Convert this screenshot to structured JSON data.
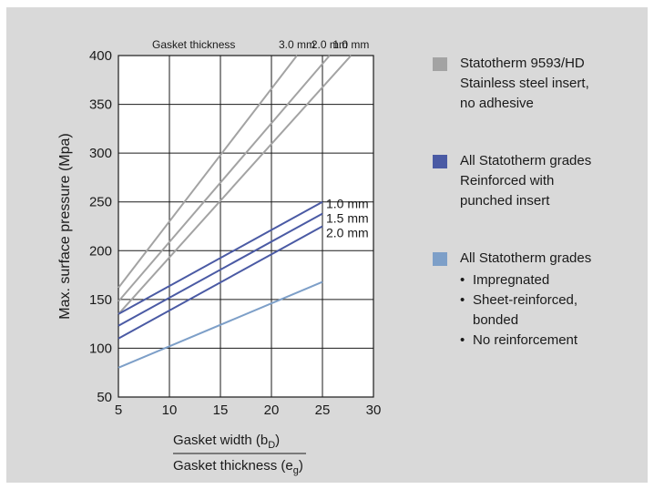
{
  "chart_data": {
    "type": "line",
    "title": "",
    "ylabel": "Max. surface pressure (Mpa)",
    "xlabel_numerator": "Gasket width (b",
    "xlabel_numerator_sub": "D",
    "xlabel_denominator": "Gasket thickness (e",
    "xlabel_denominator_sub": "g",
    "xlim": [
      5,
      30
    ],
    "ylim": [
      50,
      400
    ],
    "x_ticks": [
      "5",
      "10",
      "15",
      "20",
      "25",
      "30"
    ],
    "y_ticks": [
      "50",
      "100",
      "150",
      "200",
      "250",
      "300",
      "350",
      "400"
    ],
    "grid": true,
    "top_annotation": "Gasket thickness",
    "colors": {
      "grey": "#a3a3a3",
      "dark_blue": "#4a5aa4",
      "light_blue": "#7d9fc8"
    },
    "series": [
      {
        "name": "3.0 mm",
        "group": "grey",
        "x": [
          5,
          22.5
        ],
        "y": [
          162,
          400
        ],
        "label_position": "top"
      },
      {
        "name": "2.0 mm",
        "group": "grey",
        "x": [
          5,
          25.7
        ],
        "y": [
          148,
          400
        ],
        "label_position": "top"
      },
      {
        "name": "1.0 mm",
        "group": "grey",
        "x": [
          5,
          27.8
        ],
        "y": [
          135,
          400
        ],
        "label_position": "top"
      },
      {
        "name": "1.0 mm",
        "group": "dark_blue",
        "x": [
          5,
          25
        ],
        "y": [
          135,
          250
        ],
        "label_position": "right"
      },
      {
        "name": "1.5 mm",
        "group": "dark_blue",
        "x": [
          5,
          25
        ],
        "y": [
          123,
          238
        ],
        "label_position": "right"
      },
      {
        "name": "2.0 mm",
        "group": "dark_blue",
        "x": [
          5,
          25
        ],
        "y": [
          110,
          225
        ],
        "label_position": "right"
      },
      {
        "name": "",
        "group": "light_blue",
        "x": [
          5,
          25
        ],
        "y": [
          80,
          168
        ]
      }
    ]
  },
  "legend": [
    {
      "color": "#a3a3a3",
      "lines": [
        "Statotherm 9593/HD",
        "Stainless steel insert,",
        "no adhesive"
      ],
      "bullets": []
    },
    {
      "color": "#4a5aa4",
      "lines": [
        "All Statotherm grades",
        "Reinforced with",
        "punched insert"
      ],
      "bullets": []
    },
    {
      "color": "#7d9fc8",
      "lines": [
        "All Statotherm grades"
      ],
      "bullets": [
        [
          "Impregnated"
        ],
        [
          "Sheet-reinforced,",
          "bonded"
        ],
        [
          "No reinforcement"
        ]
      ]
    }
  ]
}
